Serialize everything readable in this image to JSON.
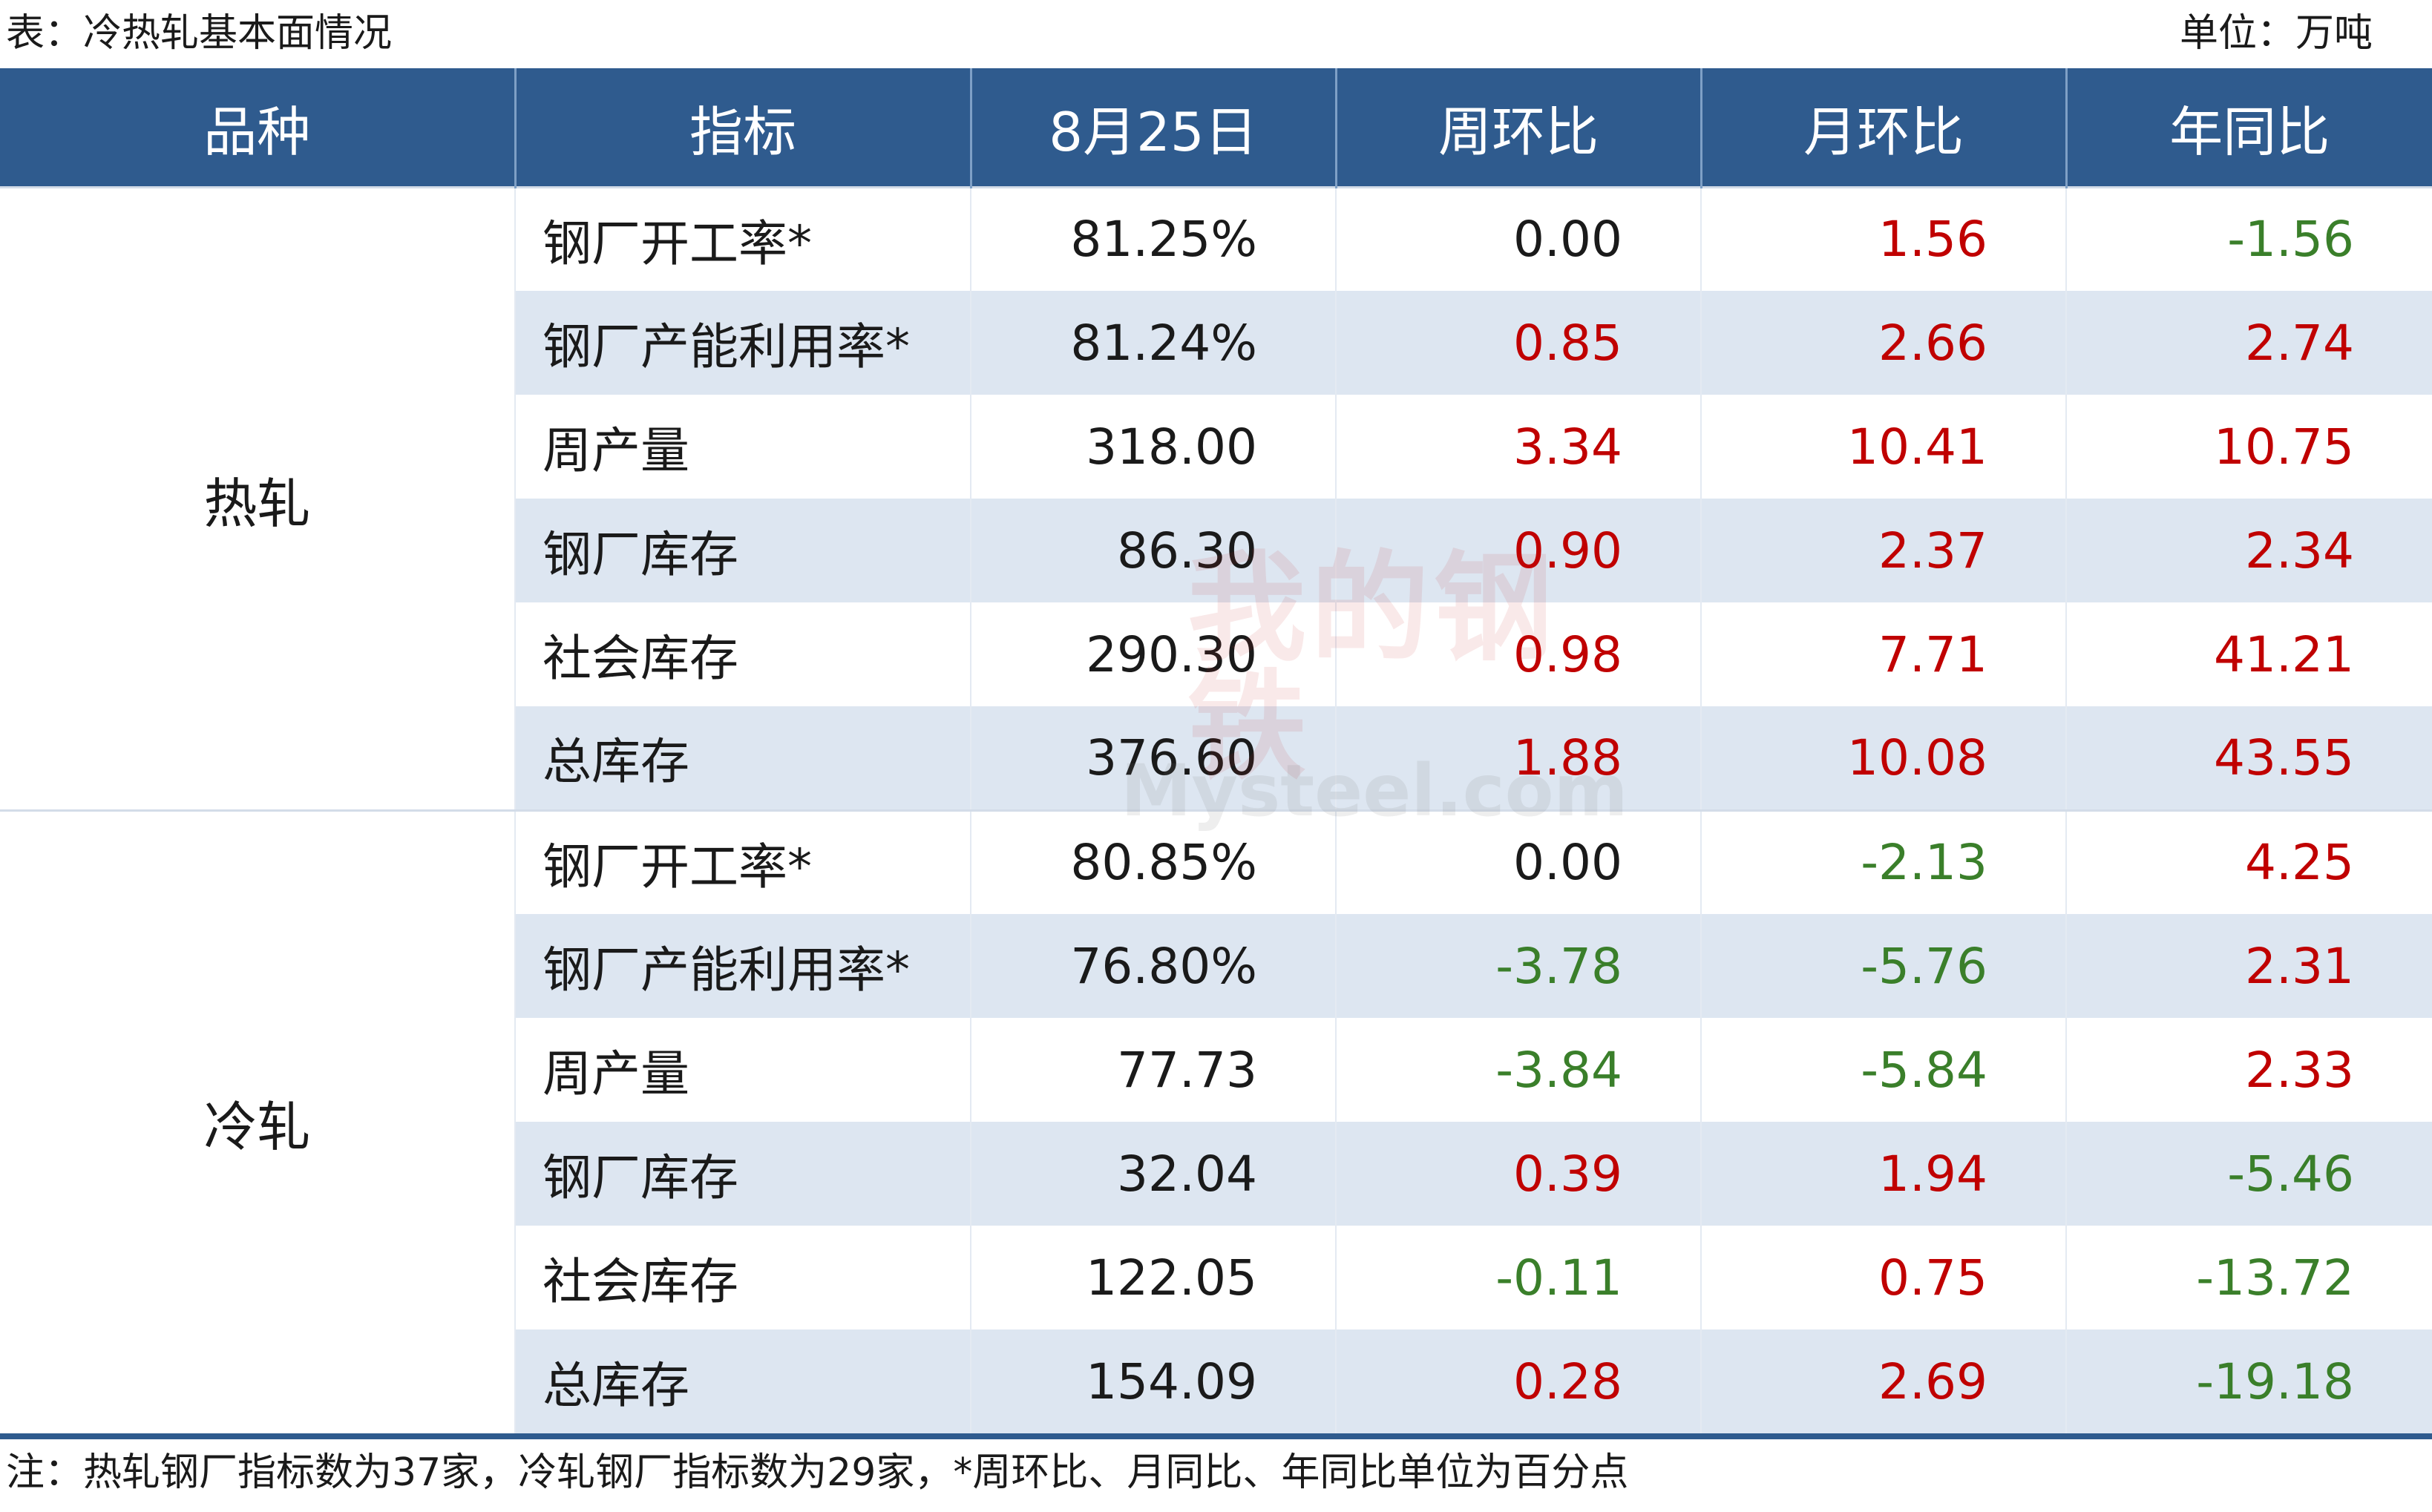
{
  "caption": {
    "title": "表：冷热轧基本面情况",
    "unit": "单位：万吨"
  },
  "headers": [
    "品种",
    "指标",
    "8月25日",
    "周环比",
    "月环比",
    "年同比"
  ],
  "groups": [
    {
      "variety": "热轧",
      "rows": [
        {
          "indicator": "钢厂开工率*",
          "value": "81.25%",
          "wow": "0.00",
          "mom": "1.56",
          "yoy": "-1.56"
        },
        {
          "indicator": "钢厂产能利用率*",
          "value": "81.24%",
          "wow": "0.85",
          "mom": "2.66",
          "yoy": "2.74"
        },
        {
          "indicator": "周产量",
          "value": "318.00",
          "wow": "3.34",
          "mom": "10.41",
          "yoy": "10.75"
        },
        {
          "indicator": "钢厂库存",
          "value": "86.30",
          "wow": "0.90",
          "mom": "2.37",
          "yoy": "2.34"
        },
        {
          "indicator": "社会库存",
          "value": "290.30",
          "wow": "0.98",
          "mom": "7.71",
          "yoy": "41.21"
        },
        {
          "indicator": "总库存",
          "value": "376.60",
          "wow": "1.88",
          "mom": "10.08",
          "yoy": "43.55"
        }
      ]
    },
    {
      "variety": "冷轧",
      "rows": [
        {
          "indicator": "钢厂开工率*",
          "value": "80.85%",
          "wow": "0.00",
          "mom": "-2.13",
          "yoy": "4.25"
        },
        {
          "indicator": "钢厂产能利用率*",
          "value": "76.80%",
          "wow": "-3.78",
          "mom": "-5.76",
          "yoy": "2.31"
        },
        {
          "indicator": "周产量",
          "value": "77.73",
          "wow": "-3.84",
          "mom": "-5.84",
          "yoy": "2.33"
        },
        {
          "indicator": "钢厂库存",
          "value": "32.04",
          "wow": "0.39",
          "mom": "1.94",
          "yoy": "-5.46"
        },
        {
          "indicator": "社会库存",
          "value": "122.05",
          "wow": "-0.11",
          "mom": "0.75",
          "yoy": "-13.72"
        },
        {
          "indicator": "总库存",
          "value": "154.09",
          "wow": "0.28",
          "mom": "2.69",
          "yoy": "-19.18"
        }
      ]
    }
  ],
  "footnote": "注：热轧钢厂指标数为37家，冷轧钢厂指标数为29家，*周环比、月同比、年同比单位为百分点",
  "watermark": {
    "chars": "我的钢铁",
    "text": "Mysteel.com"
  },
  "colors": {
    "header_bg": "#2f5b8e",
    "stripe": "#dde6f1",
    "positive": "#c00000",
    "negative": "#3a7f2a",
    "zero": "#1a1a1a"
  }
}
